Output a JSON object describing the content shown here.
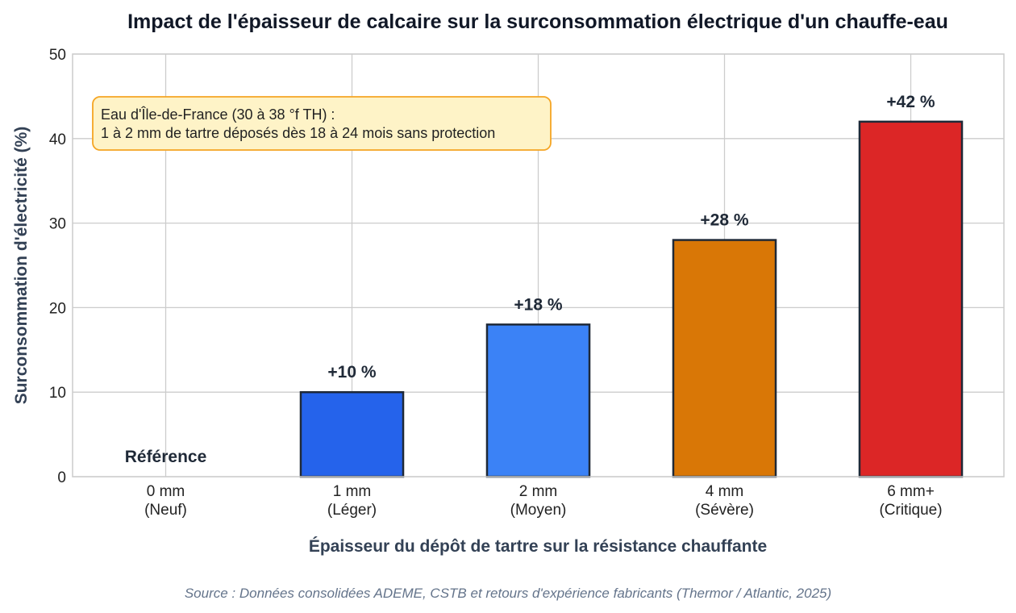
{
  "chart_data": {
    "type": "bar",
    "title": "Impact de l'épaisseur de calcaire sur la surconsommation électrique d'un chauffe-eau",
    "xlabel": "Épaisseur du dépôt de tartre sur la résistance chauffante",
    "ylabel": "Surconsommation d'électricité (%)",
    "ylim": [
      0,
      50
    ],
    "yticks": [
      0,
      10,
      20,
      30,
      40,
      50
    ],
    "grid": true,
    "categories": [
      [
        "0 mm",
        "(Neuf)"
      ],
      [
        "1 mm",
        "(Léger)"
      ],
      [
        "2 mm",
        "(Moyen)"
      ],
      [
        "4 mm",
        "(Sévère)"
      ],
      [
        "6 mm+",
        "(Critique)"
      ]
    ],
    "values": [
      0,
      10,
      18,
      28,
      42
    ],
    "data_labels": [
      "Référence",
      "+10 %",
      "+18 %",
      "+28 %",
      "+42 %"
    ],
    "colors": [
      "#ffffff",
      "#2563eb",
      "#3b82f6",
      "#d97706",
      "#dc2626"
    ],
    "annotation": {
      "lines": [
        "Eau d'Île-de-France (30 à 38 °f TH) :",
        "1 à 2 mm de tartre déposés dès 18 à 24 mois sans protection"
      ],
      "background": "#fef3c7",
      "border": "#f5a524"
    },
    "source": "Source : Données consolidées ADEME, CSTB et retours d'expérience fabricants (Thermor / Atlantic, 2025)"
  }
}
